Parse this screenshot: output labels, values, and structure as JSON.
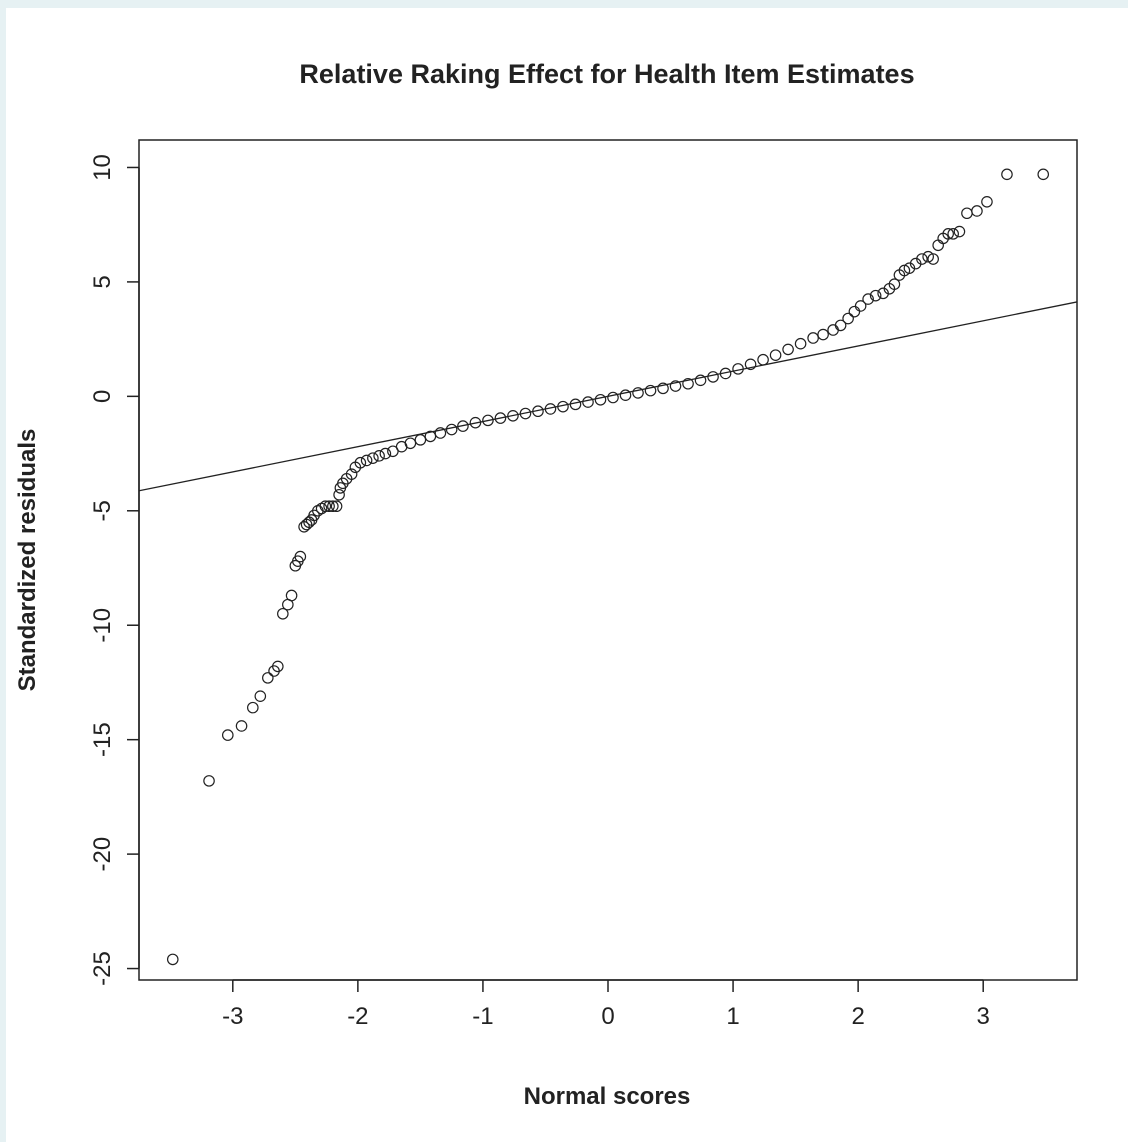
{
  "chart_data": {
    "type": "scatter",
    "title": "Relative Raking Effect for Health Item Estimates",
    "xlabel": "Normal scores",
    "ylabel": "Standardized residuals",
    "xlim": [
      -3.75,
      3.75
    ],
    "ylim": [
      -25.5,
      11.2
    ],
    "x_ticks": [
      -3,
      -2,
      -1,
      0,
      1,
      2,
      3
    ],
    "y_ticks": [
      -25,
      -20,
      -15,
      -10,
      -5,
      0,
      5,
      10
    ],
    "grid": false,
    "reference_line": {
      "intercept": 0,
      "slope": 1.1
    },
    "series": [
      {
        "marker": "open-circle",
        "points": [
          [
            -3.48,
            -24.6
          ],
          [
            -3.19,
            -16.8
          ],
          [
            -3.04,
            -14.8
          ],
          [
            -2.93,
            -14.4
          ],
          [
            -2.84,
            -13.6
          ],
          [
            -2.78,
            -13.1
          ],
          [
            -2.72,
            -12.3
          ],
          [
            -2.67,
            -12.0
          ],
          [
            -2.64,
            -11.8
          ],
          [
            -2.6,
            -9.5
          ],
          [
            -2.56,
            -9.1
          ],
          [
            -2.53,
            -8.7
          ],
          [
            -2.5,
            -7.4
          ],
          [
            -2.48,
            -7.2
          ],
          [
            -2.46,
            -7.0
          ],
          [
            -2.43,
            -5.7
          ],
          [
            -2.41,
            -5.6
          ],
          [
            -2.39,
            -5.5
          ],
          [
            -2.37,
            -5.4
          ],
          [
            -2.35,
            -5.2
          ],
          [
            -2.32,
            -5.0
          ],
          [
            -2.29,
            -4.9
          ],
          [
            -2.26,
            -4.8
          ],
          [
            -2.23,
            -4.8
          ],
          [
            -2.2,
            -4.8
          ],
          [
            -2.17,
            -4.8
          ],
          [
            -2.15,
            -4.3
          ],
          [
            -2.14,
            -4.0
          ],
          [
            -2.12,
            -3.8
          ],
          [
            -2.09,
            -3.6
          ],
          [
            -2.05,
            -3.4
          ],
          [
            -2.02,
            -3.1
          ],
          [
            -1.98,
            -2.9
          ],
          [
            -1.93,
            -2.8
          ],
          [
            -1.88,
            -2.7
          ],
          [
            -1.83,
            -2.6
          ],
          [
            -1.78,
            -2.5
          ],
          [
            -1.72,
            -2.4
          ],
          [
            -1.65,
            -2.2
          ],
          [
            -1.58,
            -2.05
          ],
          [
            -1.5,
            -1.9
          ],
          [
            -1.42,
            -1.75
          ],
          [
            -1.34,
            -1.6
          ],
          [
            -1.25,
            -1.45
          ],
          [
            -1.16,
            -1.3
          ],
          [
            -1.06,
            -1.15
          ],
          [
            -0.96,
            -1.05
          ],
          [
            -0.86,
            -0.95
          ],
          [
            -0.76,
            -0.85
          ],
          [
            -0.66,
            -0.75
          ],
          [
            -0.56,
            -0.65
          ],
          [
            -0.46,
            -0.55
          ],
          [
            -0.36,
            -0.45
          ],
          [
            -0.26,
            -0.35
          ],
          [
            -0.16,
            -0.25
          ],
          [
            -0.06,
            -0.15
          ],
          [
            0.04,
            -0.05
          ],
          [
            0.14,
            0.05
          ],
          [
            0.24,
            0.15
          ],
          [
            0.34,
            0.25
          ],
          [
            0.44,
            0.35
          ],
          [
            0.54,
            0.45
          ],
          [
            0.64,
            0.55
          ],
          [
            0.74,
            0.7
          ],
          [
            0.84,
            0.85
          ],
          [
            0.94,
            1.0
          ],
          [
            1.04,
            1.2
          ],
          [
            1.14,
            1.4
          ],
          [
            1.24,
            1.6
          ],
          [
            1.34,
            1.8
          ],
          [
            1.44,
            2.05
          ],
          [
            1.54,
            2.3
          ],
          [
            1.64,
            2.55
          ],
          [
            1.72,
            2.7
          ],
          [
            1.8,
            2.9
          ],
          [
            1.86,
            3.1
          ],
          [
            1.92,
            3.4
          ],
          [
            1.97,
            3.7
          ],
          [
            2.02,
            3.95
          ],
          [
            2.08,
            4.25
          ],
          [
            2.14,
            4.4
          ],
          [
            2.2,
            4.5
          ],
          [
            2.25,
            4.7
          ],
          [
            2.29,
            4.9
          ],
          [
            2.33,
            5.3
          ],
          [
            2.37,
            5.5
          ],
          [
            2.41,
            5.6
          ],
          [
            2.46,
            5.8
          ],
          [
            2.51,
            6.0
          ],
          [
            2.56,
            6.1
          ],
          [
            2.6,
            6.0
          ],
          [
            2.64,
            6.6
          ],
          [
            2.68,
            6.9
          ],
          [
            2.72,
            7.1
          ],
          [
            2.76,
            7.1
          ],
          [
            2.81,
            7.2
          ],
          [
            2.87,
            8.0
          ],
          [
            2.95,
            8.1
          ],
          [
            3.03,
            8.5
          ],
          [
            3.19,
            9.7
          ],
          [
            3.48,
            9.7
          ]
        ]
      }
    ]
  }
}
